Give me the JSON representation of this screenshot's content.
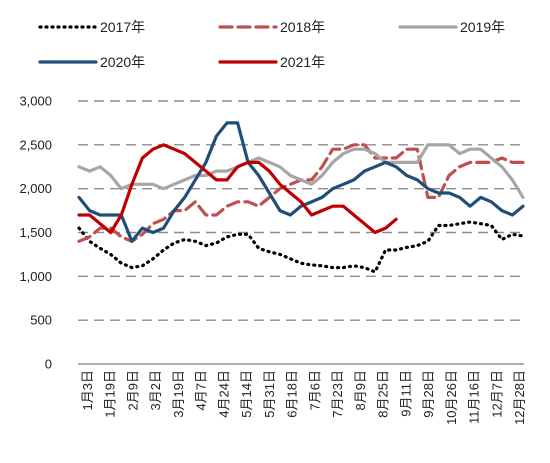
{
  "chart_data": {
    "type": "line",
    "title": "",
    "xlabel": "",
    "ylabel": "",
    "ylim": [
      0,
      3000
    ],
    "yticks": [
      "0",
      "500",
      "1,000",
      "1,500",
      "2,000",
      "2,500",
      "3,000"
    ],
    "grid": "horizontal-dashed",
    "legend_position": "top",
    "x_tick_labels": [
      "1月3日",
      "1月19日",
      "2月9日",
      "3月2日",
      "3月19日",
      "4月7日",
      "4月24日",
      "5月14日",
      "5月31日",
      "6月18日",
      "7月6日",
      "7月23日",
      "8月9日",
      "8月25日",
      "9月11日",
      "9月28日",
      "10月26日",
      "11月16日",
      "12月7日",
      "12月28日"
    ],
    "series": [
      {
        "name": "2017年",
        "color": "#000000",
        "style": "dotted",
        "values": [
          1550,
          1400,
          1320,
          1250,
          1150,
          1100,
          1120,
          1200,
          1300,
          1380,
          1420,
          1400,
          1350,
          1380,
          1450,
          1480,
          1480,
          1320,
          1280,
          1250,
          1200,
          1150,
          1130,
          1120,
          1100,
          1100,
          1120,
          1100,
          1050,
          1300,
          1300,
          1330,
          1350,
          1400,
          1580,
          1580,
          1600,
          1620,
          1600,
          1580,
          1420,
          1480,
          1460
        ]
      },
      {
        "name": "2018年",
        "color": "#c0504d",
        "style": "dashed",
        "values": [
          1400,
          1450,
          1550,
          1550,
          1450,
          1400,
          1480,
          1600,
          1650,
          1750,
          1750,
          1850,
          1700,
          1700,
          1800,
          1850,
          1850,
          1800,
          1900,
          2000,
          2050,
          2100,
          2100,
          2250,
          2450,
          2450,
          2500,
          2500,
          2350,
          2350,
          2350,
          2450,
          2450,
          1900,
          1900,
          2150,
          2250,
          2300,
          2300,
          2300,
          2350,
          2300,
          2300
        ]
      },
      {
        "name": "2019年",
        "color": "#a6a6a6",
        "style": "solid",
        "values": [
          2250,
          2200,
          2250,
          2150,
          2000,
          2050,
          2050,
          2050,
          2000,
          2050,
          2100,
          2150,
          2150,
          2200,
          2200,
          2250,
          2300,
          2350,
          2300,
          2250,
          2150,
          2100,
          2050,
          2150,
          2300,
          2400,
          2450,
          2450,
          2400,
          2300,
          2300,
          2300,
          2300,
          2500,
          2500,
          2500,
          2400,
          2450,
          2450,
          2350,
          2250,
          2100,
          1900
        ]
      },
      {
        "name": "2020年",
        "color": "#1f4e79",
        "style": "solid",
        "values": [
          1900,
          1750,
          1700,
          1700,
          1700,
          1400,
          1550,
          1500,
          1550,
          1750,
          1900,
          2100,
          2300,
          2600,
          2750,
          2750,
          2300,
          2150,
          1950,
          1750,
          1700,
          1800,
          1850,
          1900,
          2000,
          2050,
          2100,
          2200,
          2250,
          2300,
          2250,
          2150,
          2100,
          2000,
          1950,
          1950,
          1900,
          1800,
          1900,
          1850,
          1750,
          1700,
          1800
        ]
      },
      {
        "name": "2021年",
        "color": "#c00000",
        "style": "solid",
        "values": [
          1700,
          1700,
          1600,
          1500,
          1700,
          2050,
          2350,
          2450,
          2500,
          2450,
          2400,
          2300,
          2200,
          2100,
          2100,
          2250,
          2300,
          2300,
          2200,
          2050,
          1950,
          1850,
          1700,
          1750,
          1800,
          1800,
          1700,
          1600,
          1500,
          1550,
          1650
        ]
      }
    ]
  }
}
